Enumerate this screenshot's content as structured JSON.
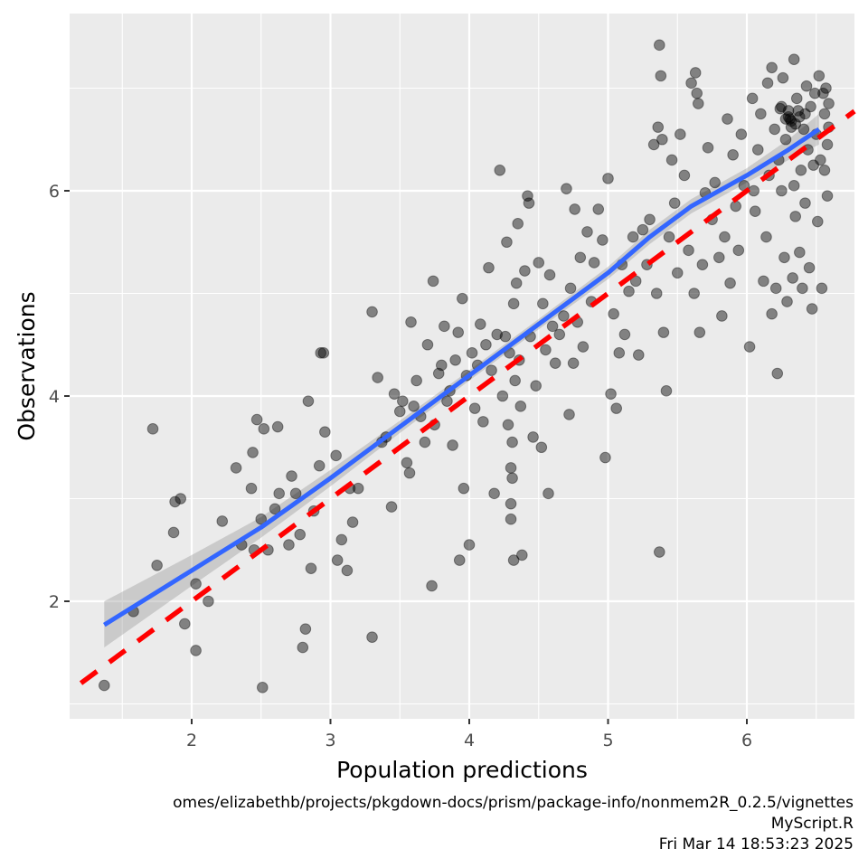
{
  "chart_data": {
    "type": "scatter",
    "title": "",
    "xlabel": "Population predictions",
    "ylabel": "Observations",
    "xlim": [
      1.15,
      6.8
    ],
    "ylim": [
      0.85,
      7.7
    ],
    "x_ticks": [
      2,
      3,
      4,
      5,
      6
    ],
    "y_ticks": [
      2,
      4,
      6
    ],
    "x_tick_labels": [
      "2",
      "3",
      "4",
      "5",
      "6"
    ],
    "y_tick_labels": [
      "2",
      "4",
      "6"
    ],
    "grid": true,
    "legend": "none",
    "colors": {
      "panel_background": "#ebebeb",
      "grid": "#ffffff",
      "points": "#000000",
      "point_alpha": 0.45,
      "smooth_line": "#3366ff",
      "confidence_band": "#999999",
      "identity_line": "#ff0000"
    },
    "identity_line": {
      "slope": 1,
      "intercept": 0,
      "style": "dashed",
      "color": "#ff0000"
    },
    "smooth_line": {
      "method": "loess",
      "x": [
        1.37,
        2.0,
        2.5,
        3.0,
        3.5,
        4.0,
        4.5,
        5.0,
        5.3,
        5.6,
        6.0,
        6.3,
        6.52
      ],
      "y": [
        1.77,
        2.3,
        2.72,
        3.2,
        3.7,
        4.2,
        4.7,
        5.2,
        5.55,
        5.85,
        6.15,
        6.4,
        6.6
      ],
      "ci_lower": [
        1.55,
        2.15,
        2.62,
        3.12,
        3.64,
        4.15,
        4.65,
        5.14,
        5.48,
        5.78,
        6.08,
        6.3,
        6.45
      ],
      "ci_upper": [
        2.0,
        2.45,
        2.82,
        3.28,
        3.76,
        4.25,
        4.75,
        5.26,
        5.62,
        5.92,
        6.22,
        6.5,
        6.75
      ]
    },
    "series": [
      {
        "name": "observations",
        "points": [
          [
            1.37,
            1.18
          ],
          [
            1.58,
            1.9
          ],
          [
            1.72,
            3.68
          ],
          [
            1.75,
            2.35
          ],
          [
            1.87,
            2.67
          ],
          [
            1.88,
            2.97
          ],
          [
            1.92,
            3.0
          ],
          [
            1.95,
            1.78
          ],
          [
            2.03,
            1.52
          ],
          [
            2.03,
            2.17
          ],
          [
            2.12,
            2.0
          ],
          [
            2.22,
            2.78
          ],
          [
            2.32,
            3.3
          ],
          [
            2.36,
            2.55
          ],
          [
            2.43,
            3.1
          ],
          [
            2.44,
            3.45
          ],
          [
            2.45,
            2.5
          ],
          [
            2.47,
            3.77
          ],
          [
            2.5,
            2.8
          ],
          [
            2.51,
            1.16
          ],
          [
            2.52,
            3.68
          ],
          [
            2.55,
            2.5
          ],
          [
            2.6,
            2.9
          ],
          [
            2.62,
            3.7
          ],
          [
            2.63,
            3.05
          ],
          [
            2.7,
            2.55
          ],
          [
            2.72,
            3.22
          ],
          [
            2.75,
            3.05
          ],
          [
            2.78,
            2.65
          ],
          [
            2.8,
            1.55
          ],
          [
            2.82,
            1.73
          ],
          [
            2.84,
            3.95
          ],
          [
            2.86,
            2.32
          ],
          [
            2.88,
            2.88
          ],
          [
            2.92,
            3.32
          ],
          [
            2.93,
            4.42
          ],
          [
            2.95,
            4.42
          ],
          [
            2.96,
            3.65
          ],
          [
            3.04,
            3.42
          ],
          [
            3.05,
            2.4
          ],
          [
            3.08,
            2.6
          ],
          [
            3.12,
            2.3
          ],
          [
            3.14,
            3.1
          ],
          [
            3.16,
            2.77
          ],
          [
            3.2,
            3.1
          ],
          [
            3.3,
            4.82
          ],
          [
            3.3,
            1.65
          ],
          [
            3.34,
            4.18
          ],
          [
            3.37,
            3.55
          ],
          [
            3.4,
            3.6
          ],
          [
            3.44,
            2.92
          ],
          [
            3.46,
            4.02
          ],
          [
            3.5,
            3.85
          ],
          [
            3.52,
            3.95
          ],
          [
            3.55,
            3.35
          ],
          [
            3.57,
            3.25
          ],
          [
            3.58,
            4.72
          ],
          [
            3.6,
            3.9
          ],
          [
            3.62,
            4.15
          ],
          [
            3.65,
            3.8
          ],
          [
            3.68,
            3.55
          ],
          [
            3.7,
            4.5
          ],
          [
            3.73,
            2.15
          ],
          [
            3.74,
            5.12
          ],
          [
            3.75,
            3.72
          ],
          [
            3.78,
            4.22
          ],
          [
            3.8,
            4.3
          ],
          [
            3.82,
            4.68
          ],
          [
            3.84,
            3.95
          ],
          [
            3.86,
            4.05
          ],
          [
            3.88,
            3.52
          ],
          [
            3.9,
            4.35
          ],
          [
            3.92,
            4.62
          ],
          [
            3.93,
            2.4
          ],
          [
            3.95,
            4.95
          ],
          [
            3.96,
            3.1
          ],
          [
            3.98,
            4.2
          ],
          [
            4.0,
            2.55
          ],
          [
            4.02,
            4.42
          ],
          [
            4.04,
            3.88
          ],
          [
            4.06,
            4.3
          ],
          [
            4.08,
            4.7
          ],
          [
            4.1,
            3.75
          ],
          [
            4.12,
            4.5
          ],
          [
            4.14,
            5.25
          ],
          [
            4.16,
            4.25
          ],
          [
            4.18,
            3.05
          ],
          [
            4.2,
            4.6
          ],
          [
            4.22,
            6.2
          ],
          [
            4.24,
            4.0
          ],
          [
            4.26,
            4.58
          ],
          [
            4.27,
            5.5
          ],
          [
            4.28,
            3.72
          ],
          [
            4.29,
            4.42
          ],
          [
            4.3,
            3.3
          ],
          [
            4.3,
            2.95
          ],
          [
            4.3,
            2.8
          ],
          [
            4.31,
            3.2
          ],
          [
            4.31,
            3.55
          ],
          [
            4.32,
            2.4
          ],
          [
            4.32,
            4.9
          ],
          [
            4.33,
            4.15
          ],
          [
            4.34,
            5.1
          ],
          [
            4.35,
            5.68
          ],
          [
            4.36,
            4.35
          ],
          [
            4.37,
            3.9
          ],
          [
            4.38,
            2.45
          ],
          [
            4.4,
            5.22
          ],
          [
            4.42,
            5.95
          ],
          [
            4.43,
            5.88
          ],
          [
            4.44,
            4.58
          ],
          [
            4.46,
            3.6
          ],
          [
            4.48,
            4.1
          ],
          [
            4.5,
            5.3
          ],
          [
            4.52,
            3.5
          ],
          [
            4.53,
            4.9
          ],
          [
            4.55,
            4.45
          ],
          [
            4.57,
            3.05
          ],
          [
            4.58,
            5.18
          ],
          [
            4.6,
            4.68
          ],
          [
            4.62,
            4.32
          ],
          [
            4.65,
            4.6
          ],
          [
            4.68,
            4.78
          ],
          [
            4.7,
            6.02
          ],
          [
            4.72,
            3.82
          ],
          [
            4.73,
            5.05
          ],
          [
            4.75,
            4.32
          ],
          [
            4.76,
            5.82
          ],
          [
            4.78,
            4.72
          ],
          [
            4.8,
            5.35
          ],
          [
            4.82,
            4.48
          ],
          [
            4.85,
            5.6
          ],
          [
            4.88,
            4.92
          ],
          [
            4.9,
            5.3
          ],
          [
            4.93,
            5.82
          ],
          [
            4.96,
            5.52
          ],
          [
            4.98,
            3.4
          ],
          [
            5.0,
            6.12
          ],
          [
            5.02,
            4.02
          ],
          [
            5.04,
            4.8
          ],
          [
            5.06,
            3.88
          ],
          [
            5.08,
            4.42
          ],
          [
            5.1,
            5.28
          ],
          [
            5.12,
            4.6
          ],
          [
            5.15,
            5.02
          ],
          [
            5.18,
            5.55
          ],
          [
            5.2,
            5.12
          ],
          [
            5.22,
            4.4
          ],
          [
            5.25,
            5.62
          ],
          [
            5.28,
            5.28
          ],
          [
            5.3,
            5.72
          ],
          [
            5.33,
            6.45
          ],
          [
            5.35,
            5.0
          ],
          [
            5.36,
            6.62
          ],
          [
            5.37,
            7.42
          ],
          [
            5.37,
            2.48
          ],
          [
            5.38,
            7.12
          ],
          [
            5.39,
            6.5
          ],
          [
            5.4,
            4.62
          ],
          [
            5.42,
            4.05
          ],
          [
            5.44,
            5.55
          ],
          [
            5.46,
            6.3
          ],
          [
            5.48,
            5.88
          ],
          [
            5.5,
            5.2
          ],
          [
            5.52,
            6.55
          ],
          [
            5.55,
            6.15
          ],
          [
            5.58,
            5.42
          ],
          [
            5.6,
            7.05
          ],
          [
            5.62,
            5.0
          ],
          [
            5.63,
            7.15
          ],
          [
            5.64,
            6.95
          ],
          [
            5.65,
            6.85
          ],
          [
            5.66,
            4.62
          ],
          [
            5.68,
            5.28
          ],
          [
            5.7,
            5.98
          ],
          [
            5.72,
            6.42
          ],
          [
            5.75,
            5.72
          ],
          [
            5.77,
            6.08
          ],
          [
            5.8,
            5.35
          ],
          [
            5.82,
            4.78
          ],
          [
            5.84,
            5.55
          ],
          [
            5.86,
            6.7
          ],
          [
            5.88,
            5.1
          ],
          [
            5.9,
            6.35
          ],
          [
            5.92,
            5.85
          ],
          [
            5.94,
            5.42
          ],
          [
            5.96,
            6.55
          ],
          [
            5.98,
            6.05
          ],
          [
            6.02,
            4.48
          ],
          [
            6.04,
            6.9
          ],
          [
            6.05,
            6.0
          ],
          [
            6.06,
            5.8
          ],
          [
            6.08,
            6.4
          ],
          [
            6.1,
            6.75
          ],
          [
            6.12,
            5.12
          ],
          [
            6.14,
            5.55
          ],
          [
            6.15,
            7.05
          ],
          [
            6.16,
            6.15
          ],
          [
            6.18,
            7.2
          ],
          [
            6.18,
            4.8
          ],
          [
            6.2,
            6.6
          ],
          [
            6.21,
            5.05
          ],
          [
            6.22,
            4.22
          ],
          [
            6.23,
            6.3
          ],
          [
            6.24,
            6.8
          ],
          [
            6.25,
            6.0
          ],
          [
            6.26,
            7.1
          ],
          [
            6.27,
            5.35
          ],
          [
            6.28,
            6.5
          ],
          [
            6.29,
            4.92
          ],
          [
            6.3,
            6.72
          ],
          [
            6.31,
            6.7
          ],
          [
            6.32,
            6.68
          ],
          [
            6.33,
            5.15
          ],
          [
            6.34,
            7.28
          ],
          [
            6.34,
            6.05
          ],
          [
            6.35,
            5.75
          ],
          [
            6.36,
            6.9
          ],
          [
            6.37,
            6.78
          ],
          [
            6.38,
            5.4
          ],
          [
            6.39,
            6.2
          ],
          [
            6.4,
            5.05
          ],
          [
            6.41,
            6.6
          ],
          [
            6.42,
            5.88
          ],
          [
            6.43,
            7.02
          ],
          [
            6.44,
            6.4
          ],
          [
            6.45,
            5.25
          ],
          [
            6.46,
            6.82
          ],
          [
            6.47,
            4.85
          ],
          [
            6.48,
            6.25
          ],
          [
            6.49,
            6.95
          ],
          [
            6.5,
            6.55
          ],
          [
            6.51,
            5.7
          ],
          [
            6.52,
            7.12
          ],
          [
            6.53,
            6.3
          ],
          [
            6.54,
            5.05
          ],
          [
            6.55,
            6.95
          ],
          [
            6.56,
            6.75
          ],
          [
            6.56,
            6.2
          ],
          [
            6.57,
            7.0
          ],
          [
            6.58,
            6.45
          ],
          [
            6.58,
            5.95
          ],
          [
            6.59,
            6.85
          ],
          [
            6.59,
            6.62
          ],
          [
            6.32,
            6.62
          ],
          [
            6.35,
            6.65
          ],
          [
            6.3,
            6.78
          ],
          [
            6.28,
            6.7
          ],
          [
            6.38,
            6.72
          ],
          [
            6.25,
            6.82
          ],
          [
            6.42,
            6.75
          ]
        ]
      }
    ]
  },
  "footer": {
    "path": "omes/elizabethb/projects/pkgdown-docs/prism/package-info/nonmem2R_0.2.5/vignettes",
    "script": "MyScript.R",
    "timestamp": "Fri Mar 14 18:53:23 2025"
  }
}
